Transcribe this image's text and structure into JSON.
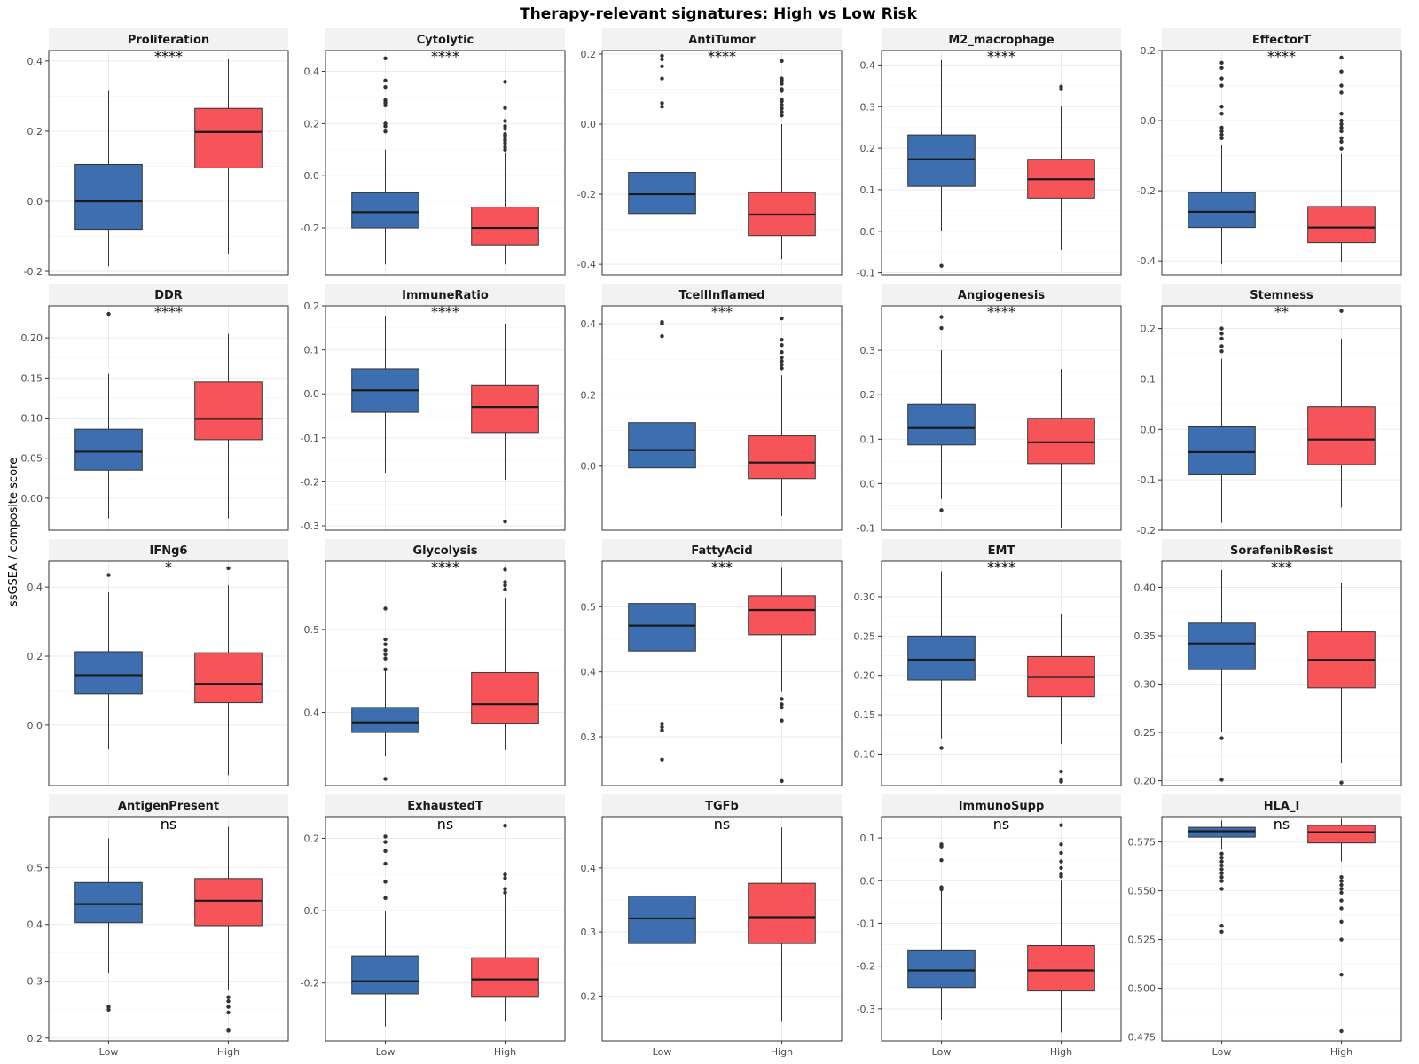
{
  "chart_data": {
    "type": "boxplot",
    "title": "Therapy-relevant signatures: High vs Low Risk",
    "ylabel": "ssGSEA / composite score",
    "groups": [
      "Low",
      "High"
    ],
    "colors": {
      "Low": "#3d6fb0",
      "High": "#f7545a"
    },
    "panels": [
      {
        "name": "Proliferation",
        "sig": "****",
        "ylim": [
          -0.21,
          0.43
        ],
        "ticks": [
          -0.2,
          0.0,
          0.2,
          0.4
        ],
        "tick_labels": [
          "-0.2",
          "0.0",
          "0.2",
          "0.4"
        ],
        "boxes": [
          {
            "min": -0.185,
            "q1": -0.08,
            "median": 0.0,
            "q3": 0.105,
            "max": 0.315,
            "outliers": []
          },
          {
            "min": -0.15,
            "q1": 0.095,
            "median": 0.198,
            "q3": 0.265,
            "max": 0.405,
            "outliers": []
          }
        ]
      },
      {
        "name": "Cytolytic",
        "sig": "****",
        "ylim": [
          -0.38,
          0.48
        ],
        "ticks": [
          -0.2,
          0.0,
          0.2,
          0.4
        ],
        "tick_labels": [
          "-0.2",
          "0.0",
          "0.2",
          "0.4"
        ],
        "boxes": [
          {
            "min": -0.34,
            "q1": -0.2,
            "median": -0.14,
            "q3": -0.065,
            "max": 0.1,
            "outliers": [
              0.45,
              0.365,
              0.34,
              0.29,
              0.28,
              0.27,
              0.2,
              0.19,
              0.17
            ]
          },
          {
            "min": -0.34,
            "q1": -0.265,
            "median": -0.2,
            "q3": -0.12,
            "max": 0.09,
            "outliers": [
              0.36,
              0.26,
              0.21,
              0.19,
              0.18,
              0.16,
              0.155,
              0.15,
              0.14,
              0.135,
              0.125,
              0.11,
              0.1
            ]
          }
        ]
      },
      {
        "name": "AntiTumor",
        "sig": "****",
        "ylim": [
          -0.43,
          0.21
        ],
        "ticks": [
          -0.4,
          -0.2,
          0.0,
          0.2
        ],
        "tick_labels": [
          "-0.4",
          "-0.2",
          "0.0",
          "0.2"
        ],
        "boxes": [
          {
            "min": -0.41,
            "q1": -0.255,
            "median": -0.2,
            "q3": -0.138,
            "max": 0.03,
            "outliers": [
              0.195,
              0.185,
              0.165,
              0.13,
              0.06,
              0.05
            ]
          },
          {
            "min": -0.385,
            "q1": -0.318,
            "median": -0.258,
            "q3": -0.195,
            "max": 0.0,
            "outliers": [
              0.18,
              0.13,
              0.125,
              0.115,
              0.1,
              0.095,
              0.07,
              0.065,
              0.055,
              0.045,
              0.035,
              0.025
            ]
          }
        ]
      },
      {
        "name": "M2_macrophage",
        "sig": "****",
        "ylim": [
          -0.105,
          0.435
        ],
        "ticks": [
          -0.1,
          0.0,
          0.1,
          0.2,
          0.3,
          0.4
        ],
        "tick_labels": [
          "-0.1",
          "0.0",
          "0.1",
          "0.2",
          "0.3",
          "0.4"
        ],
        "boxes": [
          {
            "min": 0.0,
            "q1": 0.108,
            "median": 0.173,
            "q3": 0.232,
            "max": 0.412,
            "outliers": [
              -0.083
            ]
          },
          {
            "min": -0.045,
            "q1": 0.08,
            "median": 0.125,
            "q3": 0.173,
            "max": 0.3,
            "outliers": [
              0.348,
              0.342
            ]
          }
        ]
      },
      {
        "name": "EffectorT",
        "sig": "****",
        "ylim": [
          -0.44,
          0.2
        ],
        "ticks": [
          -0.4,
          -0.2,
          0.0,
          0.2
        ],
        "tick_labels": [
          "-0.4",
          "-0.2",
          "0.0",
          "0.2"
        ],
        "boxes": [
          {
            "min": -0.41,
            "q1": -0.305,
            "median": -0.26,
            "q3": -0.205,
            "max": -0.07,
            "outliers": [
              0.165,
              0.15,
              0.12,
              0.1,
              0.04,
              0.02,
              -0.02,
              -0.03,
              -0.04,
              -0.05
            ]
          },
          {
            "min": -0.405,
            "q1": -0.348,
            "median": -0.305,
            "q3": -0.245,
            "max": -0.095,
            "outliers": [
              0.18,
              0.14,
              0.1,
              0.08,
              0.02,
              0.0,
              -0.01,
              -0.02,
              -0.03,
              -0.05,
              -0.06,
              -0.08
            ]
          }
        ]
      },
      {
        "name": "DDR",
        "sig": "****",
        "ylim": [
          -0.04,
          0.24
        ],
        "ticks": [
          0.0,
          0.05,
          0.1,
          0.15,
          0.2
        ],
        "tick_labels": [
          "0.00",
          "0.05",
          "0.10",
          "0.15",
          "0.20"
        ],
        "boxes": [
          {
            "min": -0.025,
            "q1": 0.035,
            "median": 0.058,
            "q3": 0.086,
            "max": 0.155,
            "outliers": [
              0.23
            ]
          },
          {
            "min": -0.025,
            "q1": 0.073,
            "median": 0.099,
            "q3": 0.145,
            "max": 0.205,
            "outliers": []
          }
        ]
      },
      {
        "name": "ImmuneRatio",
        "sig": "****",
        "ylim": [
          -0.31,
          0.2
        ],
        "ticks": [
          -0.3,
          -0.2,
          -0.1,
          0.0,
          0.1,
          0.2
        ],
        "tick_labels": [
          "-0.3",
          "-0.2",
          "-0.1",
          "0.0",
          "0.1",
          "0.2"
        ],
        "boxes": [
          {
            "min": -0.18,
            "q1": -0.042,
            "median": 0.008,
            "q3": 0.057,
            "max": 0.178,
            "outliers": []
          },
          {
            "min": -0.195,
            "q1": -0.088,
            "median": -0.03,
            "q3": 0.02,
            "max": 0.16,
            "outliers": [
              -0.29
            ]
          }
        ]
      },
      {
        "name": "TcellInflamed",
        "sig": "***",
        "ylim": [
          -0.18,
          0.45
        ],
        "ticks": [
          0.0,
          0.2,
          0.4
        ],
        "tick_labels": [
          "0.0",
          "0.2",
          "0.4"
        ],
        "boxes": [
          {
            "min": -0.15,
            "q1": -0.005,
            "median": 0.045,
            "q3": 0.122,
            "max": 0.285,
            "outliers": [
              0.405,
              0.4,
              0.365
            ]
          },
          {
            "min": -0.14,
            "q1": -0.035,
            "median": 0.01,
            "q3": 0.085,
            "max": 0.255,
            "outliers": [
              0.415,
              0.355,
              0.34,
              0.32,
              0.305,
              0.295,
              0.285,
              0.275
            ]
          }
        ]
      },
      {
        "name": "Angiogenesis",
        "sig": "****",
        "ylim": [
          -0.105,
          0.4
        ],
        "ticks": [
          -0.1,
          0.0,
          0.1,
          0.2,
          0.3
        ],
        "tick_labels": [
          "-0.1",
          "0.0",
          "0.1",
          "0.2",
          "0.3"
        ],
        "boxes": [
          {
            "min": -0.035,
            "q1": 0.087,
            "median": 0.125,
            "q3": 0.178,
            "max": 0.3,
            "outliers": [
              0.375,
              0.35,
              -0.06
            ]
          },
          {
            "min": -0.1,
            "q1": 0.045,
            "median": 0.093,
            "q3": 0.147,
            "max": 0.258,
            "outliers": []
          }
        ]
      },
      {
        "name": "Stemness",
        "sig": "**",
        "ylim": [
          -0.2,
          0.245
        ],
        "ticks": [
          -0.2,
          -0.1,
          0.0,
          0.1,
          0.2
        ],
        "tick_labels": [
          "-0.2",
          "-0.1",
          "0.0",
          "0.1",
          "0.2"
        ],
        "boxes": [
          {
            "min": -0.185,
            "q1": -0.09,
            "median": -0.045,
            "q3": 0.005,
            "max": 0.14,
            "outliers": [
              0.2,
              0.19,
              0.18,
              0.165,
              0.155
            ]
          },
          {
            "min": -0.155,
            "q1": -0.07,
            "median": -0.02,
            "q3": 0.045,
            "max": 0.18,
            "outliers": [
              0.235
            ]
          }
        ]
      },
      {
        "name": "IFNg6",
        "sig": "*",
        "ylim": [
          -0.175,
          0.475
        ],
        "ticks": [
          0.0,
          0.2,
          0.4
        ],
        "tick_labels": [
          "0.0",
          "0.2",
          "0.4"
        ],
        "boxes": [
          {
            "min": -0.07,
            "q1": 0.09,
            "median": 0.145,
            "q3": 0.213,
            "max": 0.385,
            "outliers": [
              0.435
            ]
          },
          {
            "min": -0.145,
            "q1": 0.065,
            "median": 0.12,
            "q3": 0.21,
            "max": 0.405,
            "outliers": [
              0.455
            ]
          }
        ]
      },
      {
        "name": "Glycolysis",
        "sig": "****",
        "ylim": [
          0.312,
          0.582
        ],
        "ticks": [
          0.4,
          0.5
        ],
        "tick_labels": [
          "0.4",
          "0.5"
        ],
        "boxes": [
          {
            "min": 0.347,
            "q1": 0.376,
            "median": 0.388,
            "q3": 0.406,
            "max": 0.45,
            "outliers": [
              0.525,
              0.488,
              0.482,
              0.475,
              0.47,
              0.465,
              0.452,
              0.32
            ]
          },
          {
            "min": 0.355,
            "q1": 0.387,
            "median": 0.41,
            "q3": 0.448,
            "max": 0.538,
            "outliers": [
              0.572,
              0.557,
              0.553,
              0.548
            ]
          }
        ]
      },
      {
        "name": "FattyAcid",
        "sig": "***",
        "ylim": [
          0.225,
          0.57
        ],
        "ticks": [
          0.3,
          0.4,
          0.5
        ],
        "tick_labels": [
          "0.3",
          "0.4",
          "0.5"
        ],
        "boxes": [
          {
            "min": 0.34,
            "q1": 0.432,
            "median": 0.471,
            "q3": 0.505,
            "max": 0.558,
            "outliers": [
              0.32,
              0.315,
              0.31,
              0.265
            ]
          },
          {
            "min": 0.37,
            "q1": 0.457,
            "median": 0.495,
            "q3": 0.517,
            "max": 0.56,
            "outliers": [
              0.358,
              0.35,
              0.345,
              0.325,
              0.232
            ]
          }
        ]
      },
      {
        "name": "EMT",
        "sig": "****",
        "ylim": [
          0.06,
          0.345
        ],
        "ticks": [
          0.1,
          0.15,
          0.2,
          0.25,
          0.3
        ],
        "tick_labels": [
          "0.10",
          "0.15",
          "0.20",
          "0.25",
          "0.30"
        ],
        "boxes": [
          {
            "min": 0.12,
            "q1": 0.194,
            "median": 0.22,
            "q3": 0.25,
            "max": 0.332,
            "outliers": [
              0.108
            ]
          },
          {
            "min": 0.113,
            "q1": 0.173,
            "median": 0.198,
            "q3": 0.224,
            "max": 0.278,
            "outliers": [
              0.078,
              0.067,
              0.065
            ]
          }
        ]
      },
      {
        "name": "SorafenibResist",
        "sig": "***",
        "ylim": [
          0.195,
          0.427
        ],
        "ticks": [
          0.2,
          0.25,
          0.3,
          0.35,
          0.4
        ],
        "tick_labels": [
          "0.20",
          "0.25",
          "0.30",
          "0.35",
          "0.40"
        ],
        "boxes": [
          {
            "min": 0.25,
            "q1": 0.315,
            "median": 0.342,
            "q3": 0.363,
            "max": 0.418,
            "outliers": [
              0.244,
              0.201
            ]
          },
          {
            "min": 0.218,
            "q1": 0.296,
            "median": 0.325,
            "q3": 0.354,
            "max": 0.405,
            "outliers": [
              0.198
            ]
          }
        ]
      },
      {
        "name": "AntigenPresent",
        "sig": "ns",
        "ylim": [
          0.195,
          0.59
        ],
        "ticks": [
          0.2,
          0.3,
          0.4,
          0.5
        ],
        "tick_labels": [
          "0.2",
          "0.3",
          "0.4",
          "0.5"
        ],
        "boxes": [
          {
            "min": 0.315,
            "q1": 0.403,
            "median": 0.436,
            "q3": 0.474,
            "max": 0.552,
            "outliers": [
              0.255,
              0.25
            ]
          },
          {
            "min": 0.285,
            "q1": 0.398,
            "median": 0.442,
            "q3": 0.481,
            "max": 0.572,
            "outliers": [
              0.272,
              0.265,
              0.255,
              0.245,
              0.215,
              0.213
            ]
          }
        ]
      },
      {
        "name": "ExhaustedT",
        "sig": "ns",
        "ylim": [
          -0.36,
          0.26
        ],
        "ticks": [
          -0.2,
          0.0,
          0.2
        ],
        "tick_labels": [
          "-0.2",
          "0.0",
          "0.2"
        ],
        "boxes": [
          {
            "min": -0.32,
            "q1": -0.23,
            "median": -0.195,
            "q3": -0.125,
            "max": 0.0,
            "outliers": [
              0.205,
              0.19,
              0.165,
              0.13,
              0.08,
              0.035
            ]
          },
          {
            "min": -0.305,
            "q1": -0.237,
            "median": -0.19,
            "q3": -0.13,
            "max": 0.045,
            "outliers": [
              0.235,
              0.1,
              0.09,
              0.06,
              0.05
            ]
          }
        ]
      },
      {
        "name": "TGFb",
        "sig": "ns",
        "ylim": [
          0.13,
          0.48
        ],
        "ticks": [
          0.2,
          0.3,
          0.4
        ],
        "tick_labels": [
          "0.2",
          "0.3",
          "0.4"
        ],
        "boxes": [
          {
            "min": 0.192,
            "q1": 0.282,
            "median": 0.321,
            "q3": 0.356,
            "max": 0.458,
            "outliers": []
          },
          {
            "min": 0.16,
            "q1": 0.282,
            "median": 0.323,
            "q3": 0.376,
            "max": 0.463,
            "outliers": []
          }
        ]
      },
      {
        "name": "ImmunoSupp",
        "sig": "ns",
        "ylim": [
          -0.375,
          0.15
        ],
        "ticks": [
          -0.3,
          -0.2,
          -0.1,
          0.0,
          0.1
        ],
        "tick_labels": [
          "-0.3",
          "-0.2",
          "-0.1",
          "0.0",
          "0.1"
        ],
        "boxes": [
          {
            "min": -0.325,
            "q1": -0.25,
            "median": -0.21,
            "q3": -0.162,
            "max": -0.02,
            "outliers": [
              0.085,
              0.08,
              0.048,
              -0.015,
              -0.02
            ]
          },
          {
            "min": -0.355,
            "q1": -0.258,
            "median": -0.21,
            "q3": -0.152,
            "max": 0.0,
            "outliers": [
              0.13,
              0.085,
              0.065,
              0.045,
              0.03,
              0.015,
              0.01
            ]
          }
        ]
      },
      {
        "name": "HLA_I",
        "sig": "ns",
        "ylim": [
          0.473,
          0.588
        ],
        "ticks": [
          0.475,
          0.5,
          0.525,
          0.55,
          0.575
        ],
        "tick_labels": [
          "0.475",
          "0.500",
          "0.525",
          "0.550",
          "0.575"
        ],
        "boxes": [
          {
            "min": 0.571,
            "q1": 0.5775,
            "median": 0.5805,
            "q3": 0.5825,
            "max": 0.586,
            "outliers": [
              0.569,
              0.567,
              0.565,
              0.563,
              0.561,
              0.559,
              0.557,
              0.555,
              0.551,
              0.532,
              0.529
            ]
          },
          {
            "min": 0.565,
            "q1": 0.5745,
            "median": 0.58,
            "q3": 0.5835,
            "max": 0.587,
            "outliers": [
              0.557,
              0.555,
              0.553,
              0.551,
              0.549,
              0.545,
              0.541,
              0.534,
              0.525,
              0.507,
              0.478
            ]
          }
        ]
      }
    ]
  }
}
